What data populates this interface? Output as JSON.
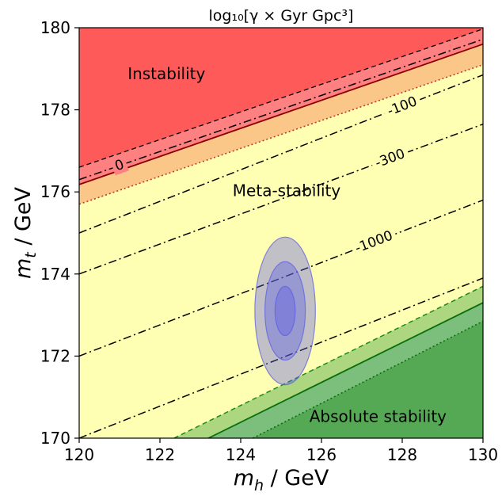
{
  "chart_data": {
    "type": "contour",
    "title": "log₁₀[γ × Gyr Gpc³]",
    "xlabel": "m_h / GeV",
    "ylabel": "m_t / GeV",
    "xlim": [
      120,
      130
    ],
    "ylim": [
      170,
      180
    ],
    "xticks": [
      "120",
      "122",
      "124",
      "126",
      "128",
      "130"
    ],
    "yticks": [
      "170",
      "172",
      "174",
      "176",
      "178",
      "180"
    ],
    "grid": false,
    "region_labels": {
      "instability": "Instability",
      "metastability": "Meta-stability",
      "absolute_stability": "Absolute stability"
    },
    "contours": [
      {
        "label": "0",
        "style": "dashdot",
        "y_at_x120": 176.3,
        "y_at_x130": 179.72
      },
      {
        "label": "-100",
        "style": "dashdot",
        "y_at_x120": 175.0,
        "y_at_x130": 178.85
      },
      {
        "label": "-300",
        "style": "dashdot",
        "y_at_x120": 174.0,
        "y_at_x130": 177.65
      },
      {
        "label": "-1000",
        "style": "dashdot",
        "y_at_x120": 172.0,
        "y_at_x130": 175.8
      },
      {
        "label": "",
        "style": "dashdot",
        "y_at_x120": 170.0,
        "y_at_x130": 173.9
      }
    ],
    "boundaries": {
      "instability_upper_dashed": {
        "y_at_x120": 176.6,
        "y_at_x130": 179.97
      },
      "instability_solid": {
        "y_at_x120": 176.18,
        "y_at_x130": 179.6
      },
      "orange_lower_dotted": {
        "y_at_x120": 175.7,
        "y_at_x130": 179.1
      },
      "stability_dashed": {
        "y_at_x122.35": 170.0,
        "y_at_x130": 173.7
      },
      "stability_solid": {
        "y_at_x123.2": 170.0,
        "y_at_x130": 173.3
      },
      "stability_dotted": {
        "y_at_x124.3": 170.0,
        "y_at_x130": 172.85
      }
    },
    "measurement": {
      "center": [
        125.1,
        173.1
      ],
      "sigma_ellipses": [
        {
          "level": 1,
          "half_width_x": 0.25,
          "half_height_y": 0.6
        },
        {
          "level": 2,
          "half_width_x": 0.5,
          "half_height_y": 1.2
        },
        {
          "level": 3,
          "half_width_x": 0.75,
          "half_height_y": 1.8
        }
      ]
    },
    "colors": {
      "instability": "#ff5a5a",
      "instability_band": "#ff8080",
      "orange_band": "#fbc789",
      "metastability": "#ffffb3",
      "stability_light": "#acd67f",
      "stability_mid": "#7cbf7c",
      "stability_dark": "#55a955",
      "ellipse": "#5a5ae6"
    }
  }
}
